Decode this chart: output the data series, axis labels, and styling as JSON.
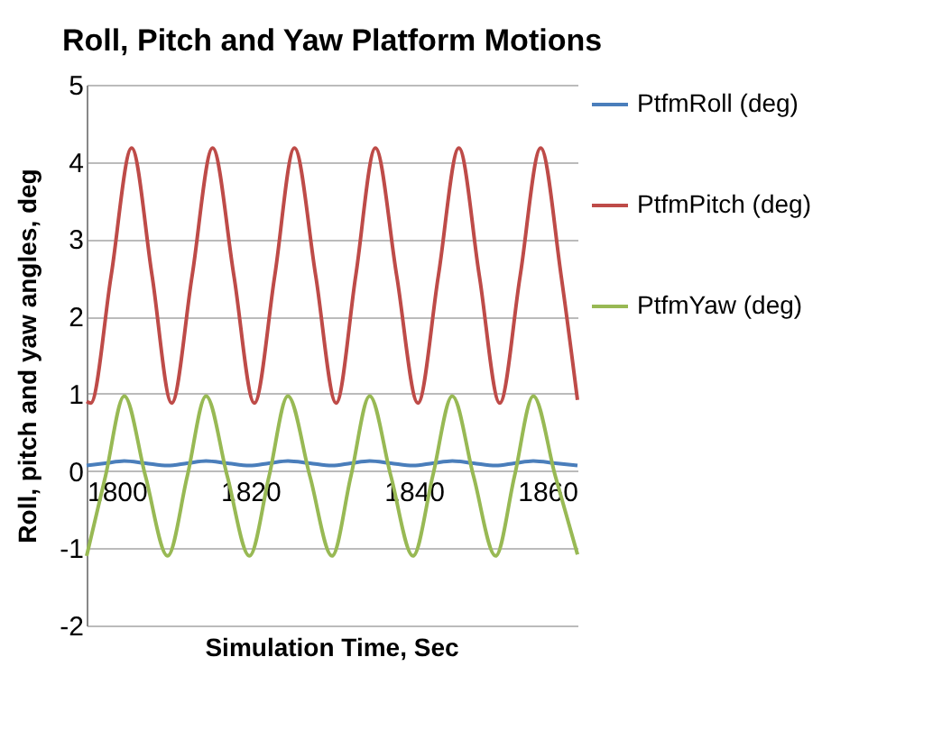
{
  "chart_data": {
    "type": "line",
    "title": "Roll, Pitch and Yaw Platform Motions",
    "xlabel": "Simulation Time, Sec",
    "ylabel": "Roll, pitch and yaw angles, deg",
    "xlim": [
      1800,
      1860
    ],
    "xticks": [
      1800,
      1820,
      1840,
      1860
    ],
    "ylim": [
      -2,
      5
    ],
    "yticks": [
      -2,
      -1,
      0,
      1,
      2,
      3,
      4,
      5
    ],
    "grid": "y",
    "legend": "right",
    "marker": "none",
    "line_style": "solid",
    "series": [
      {
        "name": "PtfmRoll (deg)",
        "color": "#4a7ebb",
        "x": [
          1800,
          1802.3,
          1804.6,
          1807.2,
          1809.9,
          1812.3,
          1814.6,
          1817.2,
          1819.9,
          1822.3,
          1824.6,
          1827.3,
          1830,
          1832.3,
          1834.6,
          1837.2,
          1839.9,
          1842.3,
          1844.7,
          1847.3,
          1850,
          1852.3,
          1854.6,
          1857.3,
          1860
        ],
        "values": [
          0.07,
          0.1,
          0.13,
          0.1,
          0.07,
          0.1,
          0.13,
          0.1,
          0.07,
          0.1,
          0.13,
          0.1,
          0.07,
          0.1,
          0.13,
          0.1,
          0.07,
          0.1,
          0.13,
          0.1,
          0.07,
          0.1,
          0.13,
          0.1,
          0.07
        ]
      },
      {
        "name": "PtfmPitch (deg)",
        "color": "#be4b48",
        "x": [
          1800,
          1800.5,
          1803,
          1805.5,
          1808,
          1810.4,
          1812.9,
          1815.4,
          1818,
          1820.5,
          1823,
          1825.4,
          1828,
          1830.5,
          1832.9,
          1835.3,
          1837.9,
          1840.5,
          1843,
          1845.5,
          1848,
          1850.5,
          1853,
          1855.5,
          1858,
          1860
        ],
        "values": [
          0.9,
          0.88,
          2.53,
          4.18,
          2.53,
          0.88,
          2.53,
          4.18,
          2.53,
          0.88,
          2.53,
          4.18,
          2.53,
          0.88,
          2.53,
          4.18,
          2.53,
          0.88,
          2.53,
          4.18,
          2.53,
          0.88,
          2.53,
          4.18,
          2.53,
          0.92
        ]
      },
      {
        "name": "PtfmYaw (deg)",
        "color": "#98b954",
        "x": [
          1800,
          1802.3,
          1804.6,
          1807.2,
          1809.9,
          1812.3,
          1814.6,
          1817.2,
          1819.9,
          1822.3,
          1824.6,
          1827.3,
          1830,
          1832.3,
          1834.6,
          1837.2,
          1839.9,
          1842.3,
          1844.7,
          1847.3,
          1850,
          1852.3,
          1854.6,
          1857.3,
          1860
        ],
        "values": [
          -1.1,
          -0.07,
          0.97,
          -0.07,
          -1.1,
          -0.07,
          0.97,
          -0.07,
          -1.1,
          -0.07,
          0.97,
          -0.07,
          -1.1,
          -0.07,
          0.97,
          -0.07,
          -1.1,
          -0.07,
          0.97,
          -0.07,
          -1.1,
          -0.07,
          0.97,
          -0.07,
          -1.08
        ]
      }
    ]
  }
}
